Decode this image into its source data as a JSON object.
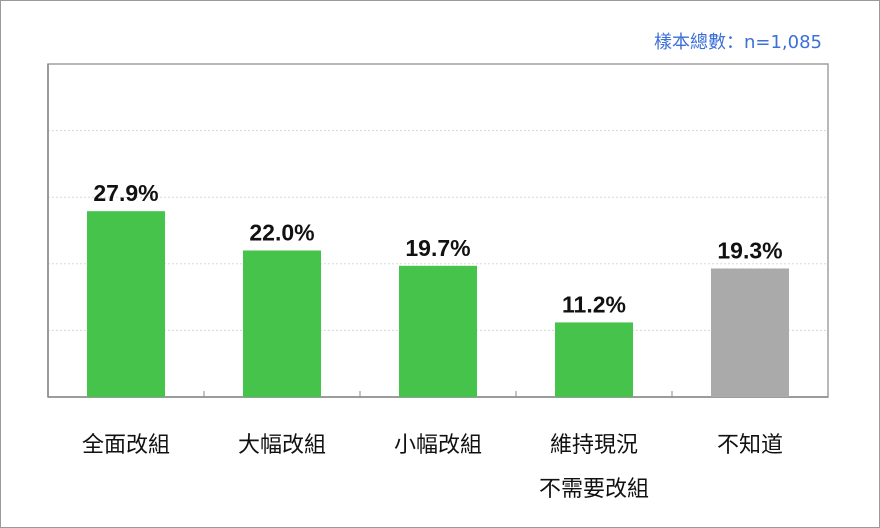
{
  "sample_note": "樣本總數：n=1,085",
  "chart_data": {
    "type": "bar",
    "categories": [
      [
        "全面改組"
      ],
      [
        "大幅改組"
      ],
      [
        "小幅改組"
      ],
      [
        "維持現況",
        "不需要改組"
      ],
      [
        "不知道"
      ]
    ],
    "values": [
      27.9,
      22.0,
      19.7,
      11.2,
      19.3
    ],
    "labels": [
      "27.9%",
      "22.0%",
      "19.7%",
      "11.2%",
      "19.3%"
    ],
    "colors": [
      "#46c34b",
      "#46c34b",
      "#46c34b",
      "#46c34b",
      "#aaaaaa"
    ],
    "ylim": [
      0,
      50
    ],
    "grid": true,
    "gridlines": [
      10,
      20,
      30,
      40
    ],
    "title": "",
    "xlabel": "",
    "ylabel": ""
  }
}
